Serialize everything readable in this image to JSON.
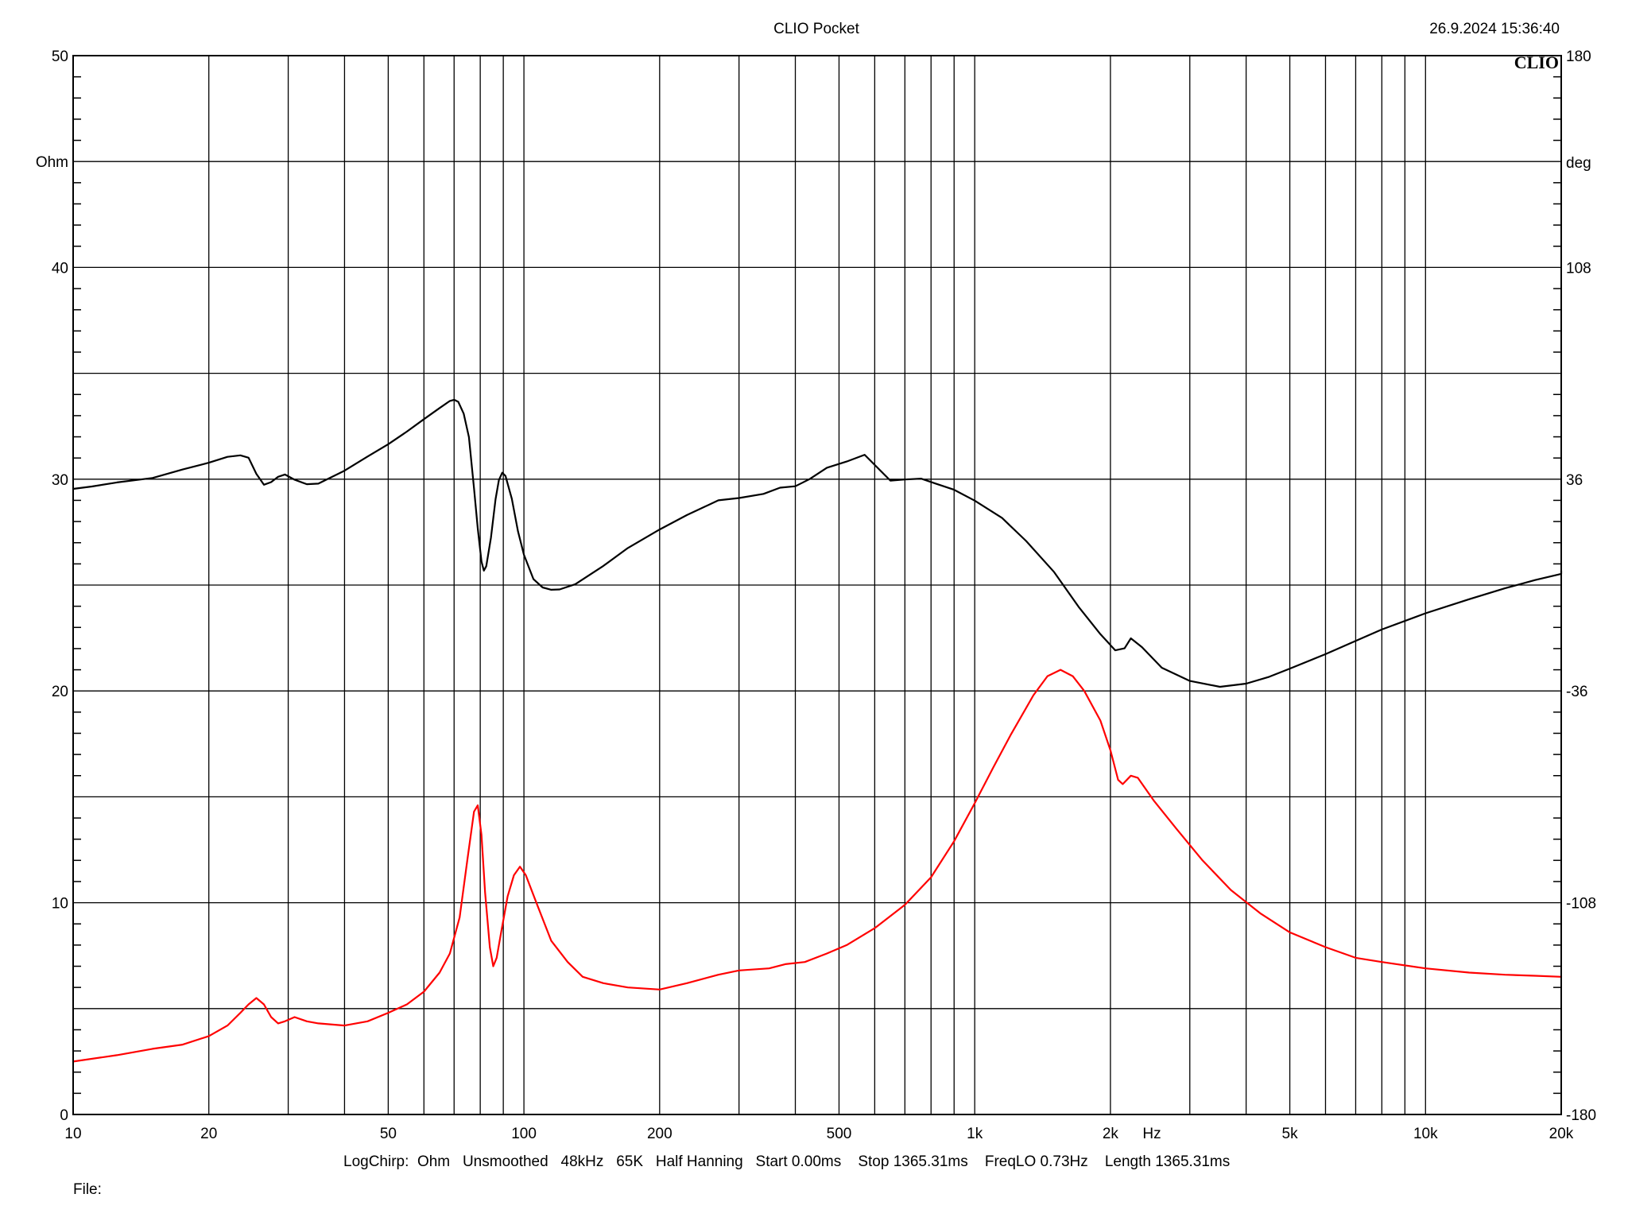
{
  "header": {
    "title": "CLIO Pocket",
    "datetime": "26.9.2024 15:36:40",
    "logo": "CLIO"
  },
  "footer": {
    "settings": "LogChirp:  Ohm   Unsmoothed   48kHz   65K   Half Hanning   Start 0.00ms    Stop 1365.31ms    FreqLO 0.73Hz    Length 1365.31ms",
    "file_label": "File:"
  },
  "chart_data": {
    "type": "line",
    "title": "CLIO Pocket",
    "x_scale": "log",
    "xlim": [
      10,
      20000
    ],
    "xlabel": "Hz",
    "x_ticks": [
      {
        "value": 10,
        "label": "10"
      },
      {
        "value": 20,
        "label": "20"
      },
      {
        "value": 50,
        "label": "50"
      },
      {
        "value": 100,
        "label": "100"
      },
      {
        "value": 200,
        "label": "200"
      },
      {
        "value": 500,
        "label": "500"
      },
      {
        "value": 1000,
        "label": "1k"
      },
      {
        "value": 2000,
        "label": "2k"
      },
      {
        "value": 5000,
        "label": "5k"
      },
      {
        "value": 10000,
        "label": "10k"
      },
      {
        "value": 20000,
        "label": "20k"
      }
    ],
    "ylabel_left": "Ohm",
    "ylim_left": [
      0,
      50
    ],
    "y_ticks_left": [
      0,
      10,
      20,
      30,
      40,
      50
    ],
    "ylabel_right": "deg",
    "ylim_right": [
      -180,
      180
    ],
    "y_ticks_right": [
      -180,
      -108,
      -36,
      36,
      108,
      180
    ],
    "grid": true,
    "series": [
      {
        "axis": "right",
        "color": "#000000",
        "points": [
          [
            10,
            32.7
          ],
          [
            11,
            33.5
          ],
          [
            12.5,
            34.9
          ],
          [
            15,
            36.4
          ],
          [
            17.5,
            39.3
          ],
          [
            20,
            41.6
          ],
          [
            22,
            43.6
          ],
          [
            23.5,
            44.1
          ],
          [
            24.5,
            43.3
          ],
          [
            25.5,
            37.8
          ],
          [
            26.5,
            34.1
          ],
          [
            27.5,
            35.0
          ],
          [
            28.5,
            36.8
          ],
          [
            29.5,
            37.6
          ],
          [
            31,
            35.8
          ],
          [
            33,
            34.3
          ],
          [
            35,
            34.5
          ],
          [
            40,
            38.9
          ],
          [
            45,
            43.7
          ],
          [
            50,
            47.9
          ],
          [
            55,
            52.2
          ],
          [
            60,
            56.4
          ],
          [
            65,
            60.2
          ],
          [
            68.5,
            62.6
          ],
          [
            70,
            63.0
          ],
          [
            71.5,
            62.3
          ],
          [
            73.5,
            58.3
          ],
          [
            75.5,
            50.3
          ],
          [
            77.5,
            32.9
          ],
          [
            79,
            19.3
          ],
          [
            80.5,
            8.0
          ],
          [
            81.5,
            4.9
          ],
          [
            82.5,
            6.4
          ],
          [
            84.5,
            16.1
          ],
          [
            86.5,
            29.2
          ],
          [
            88,
            35.7
          ],
          [
            89.5,
            38.2
          ],
          [
            91,
            37.1
          ],
          [
            94,
            29.3
          ],
          [
            97,
            18.3
          ],
          [
            100,
            10.3
          ],
          [
            105,
            2.0
          ],
          [
            110,
            -0.8
          ],
          [
            115,
            -1.6
          ],
          [
            120,
            -1.5
          ],
          [
            130,
            0.3
          ],
          [
            150,
            6.5
          ],
          [
            170,
            12.6
          ],
          [
            200,
            18.9
          ],
          [
            230,
            23.8
          ],
          [
            270,
            28.8
          ],
          [
            300,
            29.6
          ],
          [
            340,
            31.0
          ],
          [
            370,
            33.1
          ],
          [
            400,
            33.6
          ],
          [
            430,
            36.0
          ],
          [
            470,
            39.9
          ],
          [
            520,
            42.0
          ],
          [
            570,
            44.3
          ],
          [
            650,
            35.5
          ],
          [
            700,
            35.9
          ],
          [
            760,
            36.2
          ],
          [
            820,
            34.5
          ],
          [
            900,
            32.4
          ],
          [
            1000,
            28.7
          ],
          [
            1150,
            22.8
          ],
          [
            1300,
            15.0
          ],
          [
            1500,
            4.4
          ],
          [
            1700,
            -7.4
          ],
          [
            1900,
            -16.7
          ],
          [
            2050,
            -22.2
          ],
          [
            2150,
            -21.5
          ],
          [
            2220,
            -18.1
          ],
          [
            2350,
            -21.1
          ],
          [
            2600,
            -28.1
          ],
          [
            3000,
            -32.6
          ],
          [
            3500,
            -34.6
          ],
          [
            4000,
            -33.5
          ],
          [
            4500,
            -31.2
          ],
          [
            5000,
            -28.4
          ],
          [
            6000,
            -23.5
          ],
          [
            7000,
            -19.0
          ],
          [
            8000,
            -15.1
          ],
          [
            10000,
            -9.6
          ],
          [
            12500,
            -4.8
          ],
          [
            15000,
            -1.1
          ],
          [
            17500,
            1.7
          ],
          [
            20000,
            3.8
          ],
          [
            22000,
            4.9
          ]
        ]
      },
      {
        "axis": "left",
        "color": "#ff0000",
        "points": [
          [
            10,
            2.5
          ],
          [
            12.5,
            2.8
          ],
          [
            15,
            3.1
          ],
          [
            17.5,
            3.3
          ],
          [
            20,
            3.7
          ],
          [
            22,
            4.2
          ],
          [
            23.5,
            4.8
          ],
          [
            24.5,
            5.2
          ],
          [
            25.5,
            5.5
          ],
          [
            26.5,
            5.2
          ],
          [
            27.5,
            4.6
          ],
          [
            28.5,
            4.3
          ],
          [
            29.5,
            4.4
          ],
          [
            31,
            4.6
          ],
          [
            33,
            4.4
          ],
          [
            35,
            4.3
          ],
          [
            40,
            4.2
          ],
          [
            45,
            4.4
          ],
          [
            50,
            4.8
          ],
          [
            55,
            5.2
          ],
          [
            60,
            5.8
          ],
          [
            65,
            6.7
          ],
          [
            68.5,
            7.6
          ],
          [
            72,
            9.3
          ],
          [
            75,
            12.1
          ],
          [
            77.5,
            14.3
          ],
          [
            79,
            14.6
          ],
          [
            80.5,
            13.2
          ],
          [
            82,
            10.5
          ],
          [
            84,
            7.9
          ],
          [
            85.5,
            7.0
          ],
          [
            87,
            7.4
          ],
          [
            89,
            8.6
          ],
          [
            92,
            10.3
          ],
          [
            95,
            11.3
          ],
          [
            98,
            11.7
          ],
          [
            101,
            11.3
          ],
          [
            107,
            9.9
          ],
          [
            115,
            8.2
          ],
          [
            125,
            7.2
          ],
          [
            135,
            6.5
          ],
          [
            150,
            6.2
          ],
          [
            170,
            6.0
          ],
          [
            200,
            5.9
          ],
          [
            230,
            6.2
          ],
          [
            270,
            6.6
          ],
          [
            300,
            6.8
          ],
          [
            350,
            6.9
          ],
          [
            380,
            7.1
          ],
          [
            420,
            7.2
          ],
          [
            470,
            7.6
          ],
          [
            520,
            8.0
          ],
          [
            600,
            8.8
          ],
          [
            700,
            9.9
          ],
          [
            800,
            11.2
          ],
          [
            900,
            12.9
          ],
          [
            1000,
            14.7
          ],
          [
            1100,
            16.4
          ],
          [
            1200,
            17.9
          ],
          [
            1350,
            19.8
          ],
          [
            1450,
            20.7
          ],
          [
            1550,
            21.0
          ],
          [
            1650,
            20.7
          ],
          [
            1750,
            20.0
          ],
          [
            1900,
            18.6
          ],
          [
            2000,
            17.2
          ],
          [
            2080,
            15.8
          ],
          [
            2130,
            15.6
          ],
          [
            2220,
            16.0
          ],
          [
            2300,
            15.9
          ],
          [
            2500,
            14.8
          ],
          [
            2800,
            13.5
          ],
          [
            3200,
            12.0
          ],
          [
            3700,
            10.6
          ],
          [
            4300,
            9.5
          ],
          [
            5000,
            8.6
          ],
          [
            6000,
            7.9
          ],
          [
            7000,
            7.4
          ],
          [
            8000,
            7.2
          ],
          [
            10000,
            6.9
          ],
          [
            12500,
            6.7
          ],
          [
            15000,
            6.6
          ],
          [
            17500,
            6.55
          ],
          [
            20000,
            6.5
          ],
          [
            22000,
            6.5
          ]
        ]
      }
    ]
  }
}
